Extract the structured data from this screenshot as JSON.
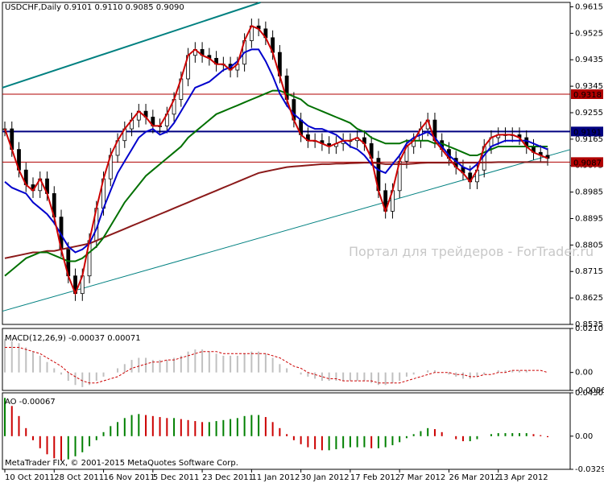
{
  "chart_data": [
    {
      "type": "candlestick",
      "symbol_header": "USDCHF,Daily  0.9101  0.9110  0.9085  0.9090",
      "ylim": [
        0.8535,
        0.963
      ],
      "y_ticks": [
        "0.9615",
        "0.9525",
        "0.9435",
        "0.9345",
        "0.9255",
        "0.9165",
        "0.9075",
        "0.8985",
        "0.8895",
        "0.8805",
        "0.8715",
        "0.8625",
        "0.8535"
      ],
      "price_lines": [
        {
          "label": "0.9318",
          "value": 0.9318,
          "color": "#b00000"
        },
        {
          "label": "0.9191",
          "value": 0.9191,
          "color": "#000080"
        },
        {
          "label": "0.9087",
          "value": 0.9087,
          "color": "#b00000"
        }
      ],
      "series": [
        {
          "values": [
            0.92,
            0.913,
            0.906,
            0.901,
            0.899,
            0.903,
            0.898,
            0.89,
            0.879,
            0.87,
            0.864,
            0.87,
            0.882,
            0.893,
            0.903,
            0.911,
            0.916,
            0.92,
            0.923,
            0.926,
            0.924,
            0.921,
            0.921,
            0.925,
            0.93,
            0.937,
            0.945,
            0.947,
            0.945,
            0.944,
            0.942,
            0.942,
            0.94,
            0.942,
            0.95,
            0.955,
            0.954,
            0.951,
            0.946,
            0.938,
            0.93,
            0.923,
            0.918,
            0.916,
            0.916,
            0.915,
            0.914,
            0.915,
            0.916,
            0.916,
            0.917,
            0.915,
            0.91,
            0.899,
            0.892,
            0.899,
            0.909,
            0.914,
            0.916,
            0.92,
            0.923,
            0.916,
            0.913,
            0.91,
            0.907,
            0.905,
            0.902,
            0.906,
            0.914,
            0.917,
            0.918,
            0.918,
            0.918,
            0.917,
            0.914,
            0.912,
            0.911,
            0.91
          ],
          "color": "#cc0000"
        },
        {
          "values": [
            0.902,
            0.9,
            0.899,
            0.898,
            0.895,
            0.893,
            0.891,
            0.888,
            0.884,
            0.88,
            0.878,
            0.879,
            0.881,
            0.886,
            0.893,
            0.899,
            0.905,
            0.909,
            0.913,
            0.917,
            0.919,
            0.92,
            0.918,
            0.919,
            0.922,
            0.926,
            0.93,
            0.934,
            0.935,
            0.936,
            0.938,
            0.94,
            0.941,
            0.943,
            0.946,
            0.947,
            0.947,
            0.943,
            0.938,
            0.932,
            0.928,
            0.925,
            0.923,
            0.921,
            0.92,
            0.92,
            0.919,
            0.918,
            0.916,
            0.914,
            0.913,
            0.911,
            0.908,
            0.906,
            0.905,
            0.908,
            0.911,
            0.915,
            0.917,
            0.918,
            0.919,
            0.917,
            0.914,
            0.911,
            0.909,
            0.907,
            0.906,
            0.908,
            0.911,
            0.914,
            0.915,
            0.916,
            0.916,
            0.916,
            0.916,
            0.915,
            0.914,
            0.913
          ],
          "color": "#0000cc"
        },
        {
          "values": [
            0.87,
            0.872,
            0.874,
            0.876,
            0.877,
            0.878,
            0.878,
            0.877,
            0.876,
            0.875,
            0.875,
            0.876,
            0.878,
            0.88,
            0.883,
            0.887,
            0.891,
            0.895,
            0.898,
            0.901,
            0.904,
            0.906,
            0.908,
            0.91,
            0.912,
            0.914,
            0.917,
            0.919,
            0.921,
            0.923,
            0.925,
            0.926,
            0.927,
            0.928,
            0.929,
            0.93,
            0.931,
            0.932,
            0.933,
            0.933,
            0.932,
            0.931,
            0.93,
            0.928,
            0.927,
            0.926,
            0.925,
            0.924,
            0.923,
            0.922,
            0.92,
            0.919,
            0.917,
            0.916,
            0.915,
            0.915,
            0.915,
            0.916,
            0.916,
            0.916,
            0.916,
            0.915,
            0.915,
            0.914,
            0.913,
            0.912,
            0.911,
            0.911,
            0.912,
            0.913,
            0.914,
            0.914,
            0.914,
            0.914,
            0.914,
            0.914,
            0.914,
            0.914
          ],
          "color": "#007000"
        },
        {
          "values": [
            0.876,
            0.8765,
            0.877,
            0.8775,
            0.878,
            0.878,
            0.8785,
            0.8785,
            0.879,
            0.8795,
            0.88,
            0.8805,
            0.881,
            0.882,
            0.883,
            0.884,
            0.885,
            0.886,
            0.887,
            0.888,
            0.889,
            0.89,
            0.891,
            0.892,
            0.893,
            0.894,
            0.895,
            0.896,
            0.897,
            0.898,
            0.899,
            0.9,
            0.901,
            0.902,
            0.903,
            0.904,
            0.905,
            0.9055,
            0.906,
            0.9065,
            0.907,
            0.9072,
            0.9074,
            0.9076,
            0.9078,
            0.908,
            0.908,
            0.9082,
            0.9082,
            0.9083,
            0.9084,
            0.9085,
            0.9085,
            0.9083,
            0.908,
            0.908,
            0.908,
            0.908,
            0.9082,
            0.9084,
            0.9085,
            0.9085,
            0.9085,
            0.9085,
            0.9085,
            0.9085,
            0.9085,
            0.9085,
            0.9086,
            0.9086,
            0.9087,
            0.9087,
            0.9087,
            0.9087,
            0.9087,
            0.9087,
            0.9087,
            0.9087
          ],
          "color": "#8b1a1a"
        }
      ],
      "trendlines": [
        {
          "from": [
            "10 Oct 2011",
            0.934
          ],
          "to": [
            "11 Jan 2012",
            0.962
          ],
          "color": "#008080"
        },
        {
          "from": [
            "10 Oct 2011",
            0.858
          ],
          "to": [
            "13 Apr 2012",
            0.906
          ],
          "color": "#008080"
        }
      ],
      "x_ticks": [
        "10 Oct 2011",
        "28 Oct 2011",
        "16 Nov 2011",
        "5 Dec 2011",
        "23 Dec 2011",
        "11 Jan 2012",
        "30 Jan 2012",
        "17 Feb 2012",
        "7 Mar 2012",
        "26 Mar 2012",
        "13 Apr 2012"
      ]
    },
    {
      "type": "histogram",
      "header": "MACD(12,26,9) -0.00037 0.00071",
      "ylim": [
        -0.0086,
        0.02107
      ],
      "y_ticks": [
        "0.02107",
        "0.00",
        "-0.0086"
      ],
      "values": [
        0.016,
        0.015,
        0.014,
        0.012,
        0.01,
        0.008,
        0.005,
        0.002,
        -0.001,
        -0.004,
        -0.006,
        -0.007,
        -0.006,
        -0.004,
        -0.002,
        0.0,
        0.002,
        0.004,
        0.006,
        0.007,
        0.007,
        0.006,
        0.006,
        0.006,
        0.007,
        0.008,
        0.01,
        0.011,
        0.011,
        0.01,
        0.009,
        0.008,
        0.008,
        0.008,
        0.009,
        0.01,
        0.01,
        0.009,
        0.007,
        0.004,
        0.002,
        0.0,
        -0.001,
        -0.002,
        -0.003,
        -0.004,
        -0.004,
        -0.004,
        -0.004,
        -0.004,
        -0.004,
        -0.004,
        -0.005,
        -0.006,
        -0.006,
        -0.005,
        -0.004,
        -0.002,
        -0.001,
        0.0,
        0.001,
        0.001,
        0.0,
        -0.001,
        -0.002,
        -0.003,
        -0.003,
        -0.002,
        -0.001,
        0.0,
        0.001,
        0.001,
        0.001,
        0.001,
        0.001,
        0.0,
        0.0,
        0.0
      ],
      "signal": [
        0.012,
        0.012,
        0.012,
        0.011,
        0.01,
        0.009,
        0.007,
        0.005,
        0.003,
        0.0,
        -0.002,
        -0.004,
        -0.005,
        -0.005,
        -0.004,
        -0.003,
        -0.002,
        0.0,
        0.002,
        0.003,
        0.004,
        0.005,
        0.005,
        0.006,
        0.006,
        0.007,
        0.008,
        0.009,
        0.01,
        0.01,
        0.01,
        0.009,
        0.009,
        0.009,
        0.009,
        0.009,
        0.009,
        0.009,
        0.008,
        0.007,
        0.005,
        0.003,
        0.002,
        0.0,
        -0.001,
        -0.002,
        -0.003,
        -0.003,
        -0.004,
        -0.004,
        -0.004,
        -0.004,
        -0.004,
        -0.005,
        -0.005,
        -0.005,
        -0.005,
        -0.004,
        -0.003,
        -0.002,
        -0.001,
        0.0,
        0.0,
        0.0,
        -0.001,
        -0.001,
        -0.002,
        -0.002,
        -0.001,
        -0.001,
        0.0,
        0.0,
        0.001,
        0.001,
        0.001,
        0.001,
        0.001,
        0.0
      ]
    },
    {
      "type": "histogram",
      "header": "AO -0.00067",
      "ylim": [
        -0.03294,
        0.04305
      ],
      "y_ticks": [
        "0.04305",
        "0.00",
        "-0.03294"
      ],
      "values": [
        0.038,
        0.03,
        0.02,
        0.008,
        -0.004,
        -0.012,
        -0.018,
        -0.022,
        -0.024,
        -0.023,
        -0.02,
        -0.016,
        -0.01,
        -0.004,
        0.004,
        0.01,
        0.014,
        0.018,
        0.021,
        0.022,
        0.021,
        0.02,
        0.019,
        0.018,
        0.018,
        0.017,
        0.016,
        0.015,
        0.014,
        0.014,
        0.015,
        0.016,
        0.017,
        0.018,
        0.02,
        0.021,
        0.021,
        0.019,
        0.014,
        0.008,
        0.002,
        -0.004,
        -0.008,
        -0.011,
        -0.013,
        -0.014,
        -0.014,
        -0.013,
        -0.012,
        -0.011,
        -0.011,
        -0.011,
        -0.012,
        -0.012,
        -0.011,
        -0.009,
        -0.006,
        -0.002,
        0.002,
        0.005,
        0.008,
        0.007,
        0.004,
        0.0,
        -0.003,
        -0.005,
        -0.005,
        -0.003,
        0.0,
        0.002,
        0.003,
        0.003,
        0.003,
        0.003,
        0.003,
        0.002,
        0.001,
        -0.001
      ]
    }
  ],
  "watermark": "Портал для трейдеров - ForTrader.ru",
  "footer": "MetaTrader FIX, © 2001-2015 MetaQuotes Software Corp."
}
